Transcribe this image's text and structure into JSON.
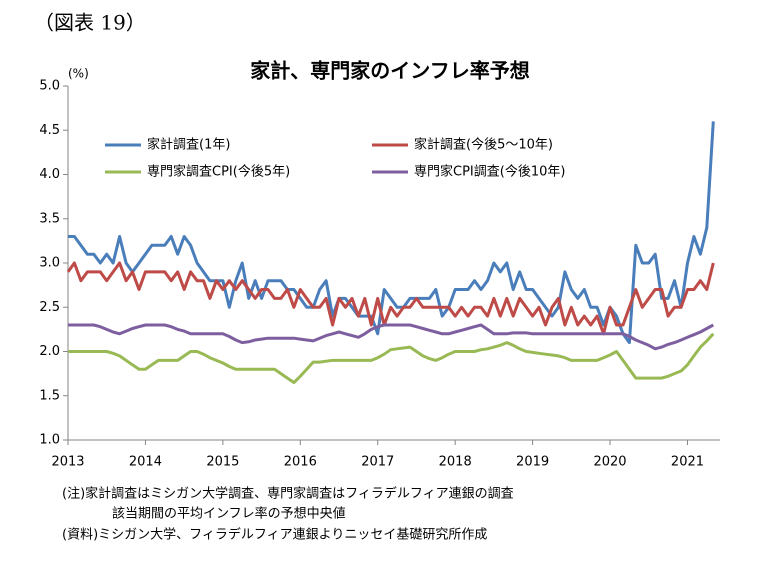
{
  "figure_label": "（図表 19）",
  "notes": [
    "(注)家計調査はミシガン大学調査、専門家調査はフィラデルフィア連銀の調査",
    "該当期間の平均インフレ率の予想中央値",
    "(資料)ミシガン大学、フィラデルフィア連銀よりニッセイ基礎研究所作成"
  ],
  "chart_data": {
    "type": "line",
    "title": "家計、専門家のインフレ率予想",
    "y_label": "(%)",
    "xlim": [
      2013,
      2021.42
    ],
    "xticks": [
      2013,
      2014,
      2015,
      2016,
      2017,
      2018,
      2019,
      2020,
      2021
    ],
    "ylim": [
      1,
      5
    ],
    "yticks": [
      {
        "value": 1,
        "label": "1.0"
      },
      1.5,
      {
        "value": 2,
        "label": "2.0"
      },
      2.5,
      {
        "value": 3,
        "label": "3.0"
      },
      3.5,
      {
        "value": 4,
        "label": "4.0"
      },
      4.5,
      {
        "value": 5,
        "label": "5.0"
      }
    ],
    "grid": false,
    "x": [
      2013,
      2013.083,
      2013.167,
      2013.25,
      2013.333,
      2013.417,
      2013.5,
      2013.583,
      2013.667,
      2013.75,
      2013.833,
      2013.917,
      2014,
      2014.083,
      2014.167,
      2014.25,
      2014.333,
      2014.417,
      2014.5,
      2014.583,
      2014.667,
      2014.75,
      2014.833,
      2014.917,
      2015,
      2015.083,
      2015.167,
      2015.25,
      2015.333,
      2015.417,
      2015.5,
      2015.583,
      2015.667,
      2015.75,
      2015.833,
      2015.917,
      2016,
      2016.083,
      2016.167,
      2016.25,
      2016.333,
      2016.417,
      2016.5,
      2016.583,
      2016.667,
      2016.75,
      2016.833,
      2016.917,
      2017,
      2017.083,
      2017.167,
      2017.25,
      2017.333,
      2017.417,
      2017.5,
      2017.583,
      2017.667,
      2017.75,
      2017.833,
      2017.917,
      2018,
      2018.083,
      2018.167,
      2018.25,
      2018.333,
      2018.417,
      2018.5,
      2018.583,
      2018.667,
      2018.75,
      2018.833,
      2018.917,
      2019,
      2019.083,
      2019.167,
      2019.25,
      2019.333,
      2019.417,
      2019.5,
      2019.583,
      2019.667,
      2019.75,
      2019.833,
      2019.917,
      2020,
      2020.083,
      2020.167,
      2020.25,
      2020.333,
      2020.417,
      2020.5,
      2020.583,
      2020.667,
      2020.75,
      2020.833,
      2020.917,
      2021,
      2021.083,
      2021.167,
      2021.25,
      2021.333
    ],
    "series": [
      {
        "name": "家計調査(1年)",
        "color": "#4a7ebb",
        "values": [
          3.3,
          3.3,
          3.2,
          3.1,
          3.1,
          3.0,
          3.1,
          3.0,
          3.3,
          3.0,
          2.9,
          3.0,
          3.1,
          3.2,
          3.2,
          3.2,
          3.3,
          3.1,
          3.3,
          3.2,
          3.0,
          2.9,
          2.8,
          2.8,
          2.8,
          2.5,
          2.8,
          3.0,
          2.6,
          2.8,
          2.6,
          2.8,
          2.8,
          2.8,
          2.7,
          2.7,
          2.6,
          2.5,
          2.5,
          2.7,
          2.8,
          2.4,
          2.6,
          2.6,
          2.5,
          2.4,
          2.4,
          2.4,
          2.2,
          2.7,
          2.6,
          2.5,
          2.5,
          2.6,
          2.6,
          2.6,
          2.6,
          2.7,
          2.4,
          2.5,
          2.7,
          2.7,
          2.7,
          2.8,
          2.7,
          2.8,
          3.0,
          2.9,
          3.0,
          2.7,
          2.9,
          2.7,
          2.7,
          2.6,
          2.5,
          2.4,
          2.5,
          2.9,
          2.7,
          2.6,
          2.7,
          2.5,
          2.5,
          2.3,
          2.5,
          2.4,
          2.2,
          2.1,
          3.2,
          3.0,
          3.0,
          3.1,
          2.6,
          2.6,
          2.8,
          2.5,
          3.0,
          3.3,
          3.1,
          3.4,
          4.6
        ]
      },
      {
        "name": "家計調査(今後5～10年)",
        "color": "#be4b48",
        "values": [
          2.9,
          3.0,
          2.8,
          2.9,
          2.9,
          2.9,
          2.8,
          2.9,
          3.0,
          2.8,
          2.9,
          2.7,
          2.9,
          2.9,
          2.9,
          2.9,
          2.8,
          2.9,
          2.7,
          2.9,
          2.8,
          2.8,
          2.6,
          2.8,
          2.7,
          2.8,
          2.7,
          2.8,
          2.7,
          2.6,
          2.7,
          2.7,
          2.6,
          2.6,
          2.7,
          2.5,
          2.7,
          2.6,
          2.5,
          2.5,
          2.6,
          2.3,
          2.6,
          2.5,
          2.6,
          2.4,
          2.6,
          2.3,
          2.6,
          2.3,
          2.5,
          2.4,
          2.5,
          2.5,
          2.6,
          2.5,
          2.5,
          2.5,
          2.5,
          2.5,
          2.4,
          2.5,
          2.4,
          2.5,
          2.5,
          2.4,
          2.6,
          2.4,
          2.6,
          2.4,
          2.6,
          2.5,
          2.4,
          2.5,
          2.3,
          2.5,
          2.6,
          2.3,
          2.5,
          2.3,
          2.4,
          2.3,
          2.4,
          2.2,
          2.5,
          2.3,
          2.3,
          2.5,
          2.7,
          2.5,
          2.6,
          2.7,
          2.7,
          2.4,
          2.5,
          2.5,
          2.7,
          2.7,
          2.8,
          2.7,
          3.0
        ]
      },
      {
        "name": "専門家調査CPI(今後5年)",
        "color": "#98b954",
        "values": [
          2.0,
          2.0,
          2.0,
          2.0,
          2.0,
          2.0,
          2.0,
          1.98,
          1.95,
          1.9,
          1.85,
          1.8,
          1.8,
          1.85,
          1.9,
          1.9,
          1.9,
          1.9,
          1.95,
          2.0,
          2.0,
          1.97,
          1.93,
          1.9,
          1.87,
          1.83,
          1.8,
          1.8,
          1.8,
          1.8,
          1.8,
          1.8,
          1.8,
          1.75,
          1.7,
          1.65,
          1.72,
          1.8,
          1.88,
          1.88,
          1.89,
          1.9,
          1.9,
          1.9,
          1.9,
          1.9,
          1.9,
          1.9,
          1.93,
          1.97,
          2.02,
          2.03,
          2.04,
          2.05,
          2.0,
          1.95,
          1.92,
          1.9,
          1.93,
          1.97,
          2.0,
          2.0,
          2.0,
          2.0,
          2.02,
          2.03,
          2.05,
          2.07,
          2.1,
          2.07,
          2.03,
          2.0,
          1.99,
          1.98,
          1.97,
          1.96,
          1.95,
          1.93,
          1.9,
          1.9,
          1.9,
          1.9,
          1.9,
          1.93,
          1.96,
          2.0,
          1.9,
          1.8,
          1.7,
          1.7,
          1.7,
          1.7,
          1.7,
          1.72,
          1.75,
          1.78,
          1.85,
          1.95,
          2.05,
          2.12,
          2.2
        ]
      },
      {
        "name": "専門家CPI調査(今後10年)",
        "color": "#7d5fa0",
        "values": [
          2.3,
          2.3,
          2.3,
          2.3,
          2.3,
          2.28,
          2.25,
          2.22,
          2.2,
          2.23,
          2.26,
          2.28,
          2.3,
          2.3,
          2.3,
          2.3,
          2.28,
          2.25,
          2.23,
          2.2,
          2.2,
          2.2,
          2.2,
          2.2,
          2.2,
          2.17,
          2.13,
          2.1,
          2.11,
          2.13,
          2.14,
          2.15,
          2.15,
          2.15,
          2.15,
          2.15,
          2.14,
          2.13,
          2.12,
          2.15,
          2.18,
          2.2,
          2.22,
          2.2,
          2.18,
          2.16,
          2.2,
          2.25,
          2.28,
          2.3,
          2.3,
          2.3,
          2.3,
          2.3,
          2.28,
          2.26,
          2.24,
          2.22,
          2.2,
          2.2,
          2.22,
          2.24,
          2.26,
          2.28,
          2.3,
          2.25,
          2.2,
          2.2,
          2.2,
          2.21,
          2.21,
          2.21,
          2.2,
          2.2,
          2.2,
          2.2,
          2.2,
          2.2,
          2.2,
          2.2,
          2.2,
          2.2,
          2.2,
          2.2,
          2.2,
          2.2,
          2.2,
          2.17,
          2.13,
          2.1,
          2.07,
          2.03,
          2.05,
          2.08,
          2.1,
          2.13,
          2.16,
          2.19,
          2.22,
          2.26,
          2.3
        ]
      }
    ]
  }
}
